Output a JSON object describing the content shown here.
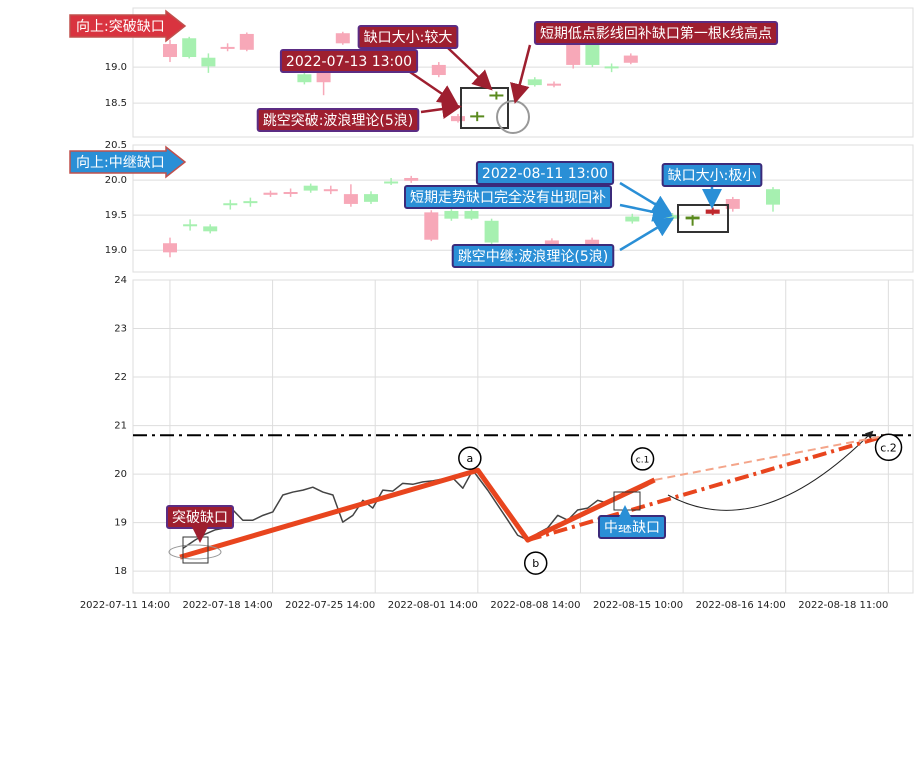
{
  "chart_data": [
    {
      "type": "candlestick",
      "label": "向上:突破缺口",
      "annotations": [
        "缺口大小:较大",
        "2022-07-13 13:00",
        "跳空突破:波浪理论(5浪)",
        "短期低点影线回补缺口第一根k线高点"
      ],
      "ylim": [
        18.03,
        19.82
      ],
      "yticks": [
        18.5,
        {
          "value": 19,
          "label": "19.0"
        }
      ],
      "up_color": "#f7a8b8",
      "down_color": "#a6f0b0",
      "highlight_up_color": "#c0282d",
      "highlight_down_color": "#5a8a1e",
      "highlight": [
        16,
        17
      ],
      "open": [
        19.14,
        19.4,
        19.13,
        19.26,
        19.24,
        null,
        null,
        18.9,
        18.79,
        19.33,
        null,
        null,
        null,
        null,
        18.89,
        18.25,
        18.33,
        18.62,
        null,
        18.83,
        18.76,
        19.03,
        19.31,
        19.01,
        19.06
      ],
      "close": [
        19.32,
        19.14,
        19.01,
        19.28,
        19.46,
        null,
        null,
        18.79,
        19.0,
        19.47,
        null,
        null,
        null,
        null,
        19.03,
        18.32,
        18.31,
        18.61,
        null,
        18.75,
        18.77,
        19.38,
        19.03,
        19.0,
        19.16
      ],
      "high": [
        19.38,
        19.42,
        19.19,
        19.33,
        19.48,
        null,
        null,
        18.94,
        19.03,
        19.49,
        null,
        null,
        null,
        null,
        19.07,
        18.35,
        18.38,
        18.66,
        null,
        18.86,
        18.8,
        19.42,
        19.35,
        19.05,
        19.19
      ],
      "low": [
        19.07,
        19.12,
        18.92,
        19.22,
        19.22,
        null,
        null,
        18.76,
        18.61,
        19.31,
        null,
        null,
        null,
        null,
        18.86,
        18.23,
        18.25,
        18.55,
        null,
        18.73,
        18.72,
        18.98,
        19.0,
        18.93,
        19.04
      ]
    },
    {
      "type": "candlestick",
      "label": "向上:中继缺口",
      "annotations": [
        "2022-08-11 13:00",
        "缺口大小:极小",
        "短期走势缺口完全没有出现回补",
        "跳空中继:波浪理论(5浪)"
      ],
      "ylim": [
        18.69,
        20.5
      ],
      "yticks": [
        {
          "value": 19,
          "label": "19.0"
        },
        19.5,
        {
          "value": 20,
          "label": "20.0"
        },
        20.5
      ],
      "up_color": "#f7a8b8",
      "down_color": "#a6f0b0",
      "highlight_up_color": "#c0282d",
      "highlight_down_color": "#5a8a1e",
      "highlight": [
        26,
        27
      ],
      "open": [
        18.97,
        19.37,
        19.34,
        19.67,
        19.7,
        19.79,
        19.82,
        19.92,
        19.86,
        19.66,
        19.8,
        19.98,
        19.99,
        19.15,
        19.56,
        19.56,
        19.42,
        null,
        null,
        19.07,
        null,
        19.06,
        null,
        19.48,
        null,
        19.5,
        19.48,
        19.52,
        19.59,
        null,
        19.87
      ],
      "close": [
        19.1,
        19.36,
        19.27,
        19.66,
        19.69,
        19.82,
        19.83,
        19.85,
        19.87,
        19.8,
        19.69,
        19.97,
        20.03,
        19.54,
        19.45,
        19.45,
        19.11,
        null,
        null,
        19.14,
        null,
        19.15,
        null,
        19.41,
        null,
        19.45,
        19.44,
        19.58,
        19.73,
        null,
        19.65
      ],
      "high": [
        19.18,
        19.44,
        19.37,
        19.72,
        19.75,
        19.85,
        19.88,
        19.95,
        19.92,
        19.94,
        19.84,
        20.03,
        20.06,
        19.57,
        19.6,
        19.59,
        19.45,
        null,
        null,
        19.17,
        null,
        19.18,
        null,
        19.52,
        null,
        19.53,
        19.5,
        19.61,
        19.76,
        null,
        19.9
      ],
      "low": [
        18.9,
        19.28,
        19.24,
        19.58,
        19.62,
        19.76,
        19.76,
        19.82,
        19.8,
        19.62,
        19.66,
        19.93,
        19.96,
        19.13,
        19.42,
        19.43,
        19.09,
        null,
        null,
        19.04,
        null,
        19.03,
        null,
        19.38,
        null,
        19.42,
        19.35,
        19.5,
        19.55,
        null,
        19.55
      ]
    },
    {
      "type": "line",
      "annotations": [
        "突破缺口",
        "中继缺口"
      ],
      "wave_labels": [
        "a",
        "b",
        "c.1",
        "c.2"
      ],
      "xlim": [
        -1.8,
        36.2
      ],
      "ylim": [
        17.55,
        24
      ],
      "yticks": [
        18,
        19,
        20,
        21,
        22,
        23,
        24
      ],
      "grid": true,
      "xticks": [
        {
          "value": 0,
          "label": "2022-07-11 14:00"
        },
        {
          "value": 5,
          "label": "2022-07-18 14:00"
        },
        {
          "value": 10,
          "label": "2022-07-25 14:00"
        },
        {
          "value": 15,
          "label": "2022-08-01 14:00"
        },
        {
          "value": 20,
          "label": "2022-08-08 14:00"
        },
        {
          "value": 25,
          "label": "2022-08-15 10:00"
        },
        {
          "value": 30,
          "label": "2022-08-16 14:00"
        },
        {
          "value": 35,
          "label": "2022-08-18 11:00"
        }
      ],
      "hline": {
        "value": 20.8,
        "color": "#000",
        "linestyle": "dashdot"
      },
      "series": [
        {
          "color": "#444",
          "width": 1.5,
          "linestyle": "solid",
          "x": [
            0.63,
            1.22,
            1.7,
            2.19,
            2.68,
            3.07,
            3.55,
            4.04,
            4.53,
            5.01,
            5.5,
            5.99,
            6.48,
            6.96,
            7.45,
            7.94,
            8.42,
            8.91,
            9.4,
            9.88,
            10.37,
            10.86,
            11.34,
            11.83,
            12.32,
            12.8,
            13.29,
            13.78,
            14.27,
            14.75,
            15.48,
            15.97,
            16.46,
            16.94,
            17.43,
            17.92,
            18.4,
            18.89,
            19.38,
            19.86,
            20.35,
            20.84,
            21.32,
            21.81,
            22.3,
            22.78,
            23.27,
            23.61
          ],
          "values": [
            18.47,
            18.64,
            18.76,
            18.85,
            18.89,
            19.26,
            19.05,
            19.05,
            19.15,
            19.22,
            19.57,
            19.63,
            19.67,
            19.73,
            19.63,
            19.57,
            19.01,
            19.15,
            19.46,
            19.3,
            19.67,
            19.65,
            19.81,
            19.79,
            19.84,
            19.86,
            19.9,
            19.92,
            19.71,
            20.08,
            19.67,
            19.36,
            19.05,
            18.74,
            18.64,
            18.78,
            18.89,
            19.15,
            19.05,
            19.26,
            19.3,
            19.46,
            19.4,
            19.51,
            19.59,
            19.67,
            19.77,
            19.88
          ]
        },
        {
          "color": "#e8451e",
          "width": 5,
          "linestyle": "solid",
          "x": [
            0.49,
            15.0,
            17.43,
            23.61
          ],
          "values": [
            18.29,
            20.08,
            18.64,
            19.88
          ]
        },
        {
          "color": "#e8451e",
          "width": 4,
          "linestyle": "dashdot",
          "x": [
            17.43,
            34.96
          ],
          "values": [
            18.64,
            20.8
          ]
        },
        {
          "color": "#f4a58a",
          "width": 2,
          "linestyle": "dashed",
          "x": [
            23.61,
            34.96
          ],
          "values": [
            19.88,
            20.8
          ]
        }
      ]
    }
  ]
}
